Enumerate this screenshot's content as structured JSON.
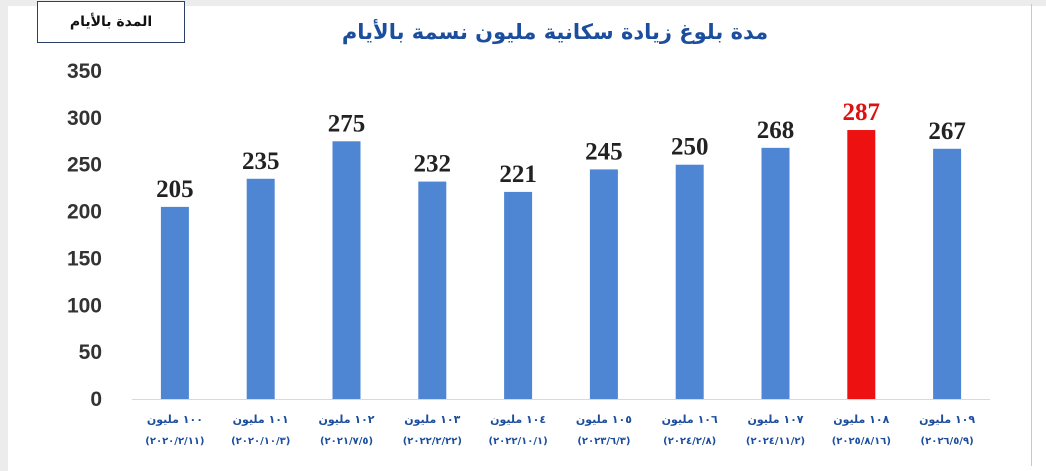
{
  "chart_data": {
    "type": "bar",
    "title": "مدة بلوغ زيادة سكانية مليون نسمة بالأيام",
    "ylabel": "المدة بالأيام",
    "xlabel": "",
    "ylim": [
      0,
      350
    ],
    "yticks": [
      0,
      50,
      100,
      150,
      200,
      250,
      300,
      350
    ],
    "grid": false,
    "legend": "none",
    "categories": [
      {
        "line1": "١٠٠ مليون",
        "line2": "(٢٠٢٠/٢/١١)"
      },
      {
        "line1": "١٠١ مليون",
        "line2": "(٢٠٢٠/١٠/٣)"
      },
      {
        "line1": "١٠٢ مليون",
        "line2": "(٢٠٢١/٧/٥)"
      },
      {
        "line1": "١٠٣ مليون",
        "line2": "(٢٠٢٢/٢/٢٢)"
      },
      {
        "line1": "١٠٤ مليون",
        "line2": "(٢٠٢٢/١٠/١)"
      },
      {
        "line1": "١٠٥ مليون",
        "line2": "(٢٠٢٣/٦/٣)"
      },
      {
        "line1": "١٠٦ مليون",
        "line2": "(٢٠٢٤/٢/٨)"
      },
      {
        "line1": "١٠٧ مليون",
        "line2": "(٢٠٢٤/١١/٢)"
      },
      {
        "line1": "١٠٨ مليون",
        "line2": "(٢٠٢٥/٨/١٦)"
      },
      {
        "line1": "١٠٩ مليون",
        "line2": "(٢٠٢٦/٥/٩)"
      }
    ],
    "values": [
      205,
      235,
      275,
      232,
      221,
      245,
      250,
      268,
      287,
      267
    ],
    "bar_color": "#4f86d4",
    "highlight_index": 8,
    "highlight_color": "#ee1111",
    "highlight_label_color": "#dd1111",
    "label_color": "#222222",
    "title_color": "#1c4e9e",
    "axis_label_color": "#1c4e9e",
    "tick_color": "#333333"
  }
}
